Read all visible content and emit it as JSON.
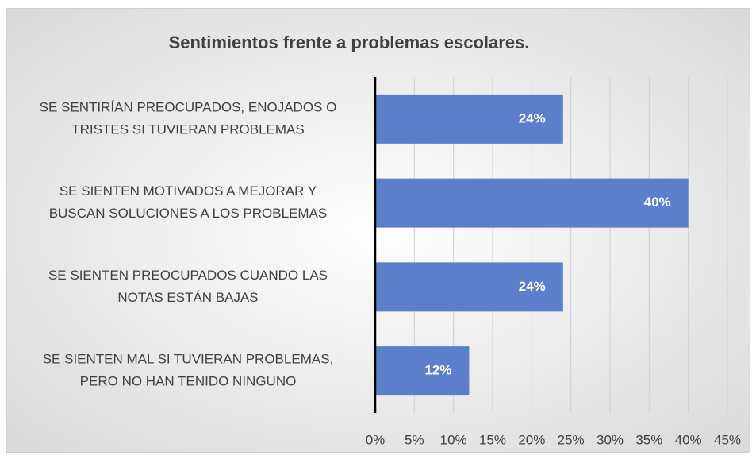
{
  "chart_data": {
    "type": "bar",
    "orientation": "horizontal",
    "title": "Sentimientos frente a problemas escolares.",
    "categories": [
      [
        "SE SENTIRÍAN PREOCUPADOS, ENOJADOS O",
        "TRISTES SI TUVIERAN PROBLEMAS"
      ],
      [
        "SE SIENTEN MOTIVADOS A MEJORAR Y",
        "BUSCAN SOLUCIONES A LOS PROBLEMAS"
      ],
      [
        "SE SIENTEN PREOCUPADOS CUANDO LAS",
        "NOTAS ESTÁN BAJAS"
      ],
      [
        "SE SIENTEN MAL SI TUVIERAN PROBLEMAS,",
        "PERO NO HAN TENIDO NINGUNO"
      ]
    ],
    "values": [
      24,
      40,
      24,
      12
    ],
    "value_labels": [
      "24%",
      "40%",
      "24%",
      "12%"
    ],
    "color": "#5b7fcb",
    "xlim": [
      0,
      45
    ],
    "xticks": [
      {
        "value": 0,
        "label": "0%"
      },
      {
        "value": 5,
        "label": "5%"
      },
      {
        "value": 10,
        "label": "10%"
      },
      {
        "value": 15,
        "label": "15%"
      },
      {
        "value": 20,
        "label": "20%"
      },
      {
        "value": 25,
        "label": "25%"
      },
      {
        "value": 30,
        "label": "30%"
      },
      {
        "value": 35,
        "label": "35%"
      },
      {
        "value": 40,
        "label": "40%"
      },
      {
        "value": 45,
        "label": "45%"
      }
    ],
    "grid": true
  }
}
